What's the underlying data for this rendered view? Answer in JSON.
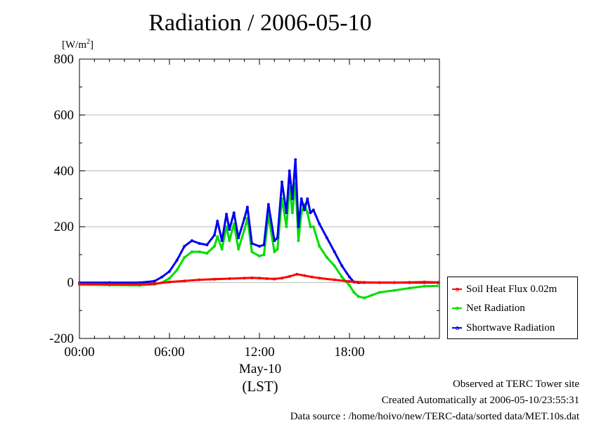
{
  "chart_data": {
    "type": "line",
    "title": "Radiation / 2006-05-10",
    "ylabel": "[W/m2]",
    "ylabel_base": "[W/m",
    "ylabel_sup": "2",
    "ylabel_end": "]",
    "ylim": [
      -200,
      800
    ],
    "xlim": [
      0,
      24
    ],
    "y_ticks": [
      -200,
      0,
      200,
      400,
      600,
      800
    ],
    "y_tick_labels": [
      "-200",
      "0",
      "200",
      "400",
      "600",
      "800"
    ],
    "x_ticks": [
      0,
      6,
      12,
      18
    ],
    "x_tick_labels": [
      "00:00",
      "06:00",
      "12:00",
      "18:00"
    ],
    "x_date_label": "May-10",
    "x_label": "(LST)",
    "grid": true,
    "legend_position": "right",
    "series": [
      {
        "name": "Soil Heat Flux 0.02m",
        "color": "#ff0000",
        "x": [
          0,
          2,
          4,
          5,
          6,
          7,
          8,
          9,
          10,
          11,
          11.5,
          12,
          12.5,
          13,
          13.5,
          14,
          14.5,
          15,
          15.5,
          16,
          17,
          18,
          19,
          20,
          21,
          22,
          23,
          23.9
        ],
        "y": [
          -5,
          -6,
          -6,
          -4,
          2,
          6,
          10,
          12,
          14,
          16,
          17,
          16,
          14,
          13,
          16,
          22,
          30,
          25,
          20,
          16,
          10,
          4,
          1,
          0,
          0,
          1,
          2,
          1
        ]
      },
      {
        "name": "Net Radiation",
        "color": "#00dd00",
        "x": [
          0,
          2,
          4,
          5,
          5.5,
          6,
          6.5,
          7,
          7.5,
          8,
          8.5,
          9,
          9.2,
          9.5,
          9.8,
          10,
          10.3,
          10.6,
          11,
          11.2,
          11.5,
          12,
          12.3,
          12.6,
          13,
          13.2,
          13.5,
          13.8,
          14,
          14.2,
          14.4,
          14.6,
          14.8,
          15,
          15.2,
          15.4,
          15.6,
          16,
          16.5,
          17,
          17.5,
          18,
          18.3,
          18.6,
          19,
          19.5,
          20,
          21,
          22,
          23,
          23.9
        ],
        "y": [
          -8,
          -9,
          -10,
          -6,
          0,
          15,
          45,
          90,
          110,
          110,
          105,
          130,
          165,
          120,
          200,
          150,
          210,
          120,
          190,
          230,
          110,
          95,
          100,
          240,
          110,
          120,
          300,
          200,
          340,
          250,
          355,
          150,
          250,
          280,
          250,
          200,
          200,
          130,
          90,
          60,
          20,
          -10,
          -35,
          -50,
          -55,
          -45,
          -35,
          -28,
          -20,
          -13,
          -12
        ]
      },
      {
        "name": "Shortwave Radiation",
        "color": "#0000ee",
        "x": [
          0,
          2,
          4,
          5,
          5.5,
          6,
          6.5,
          7,
          7.5,
          8,
          8.5,
          9,
          9.2,
          9.5,
          9.8,
          10,
          10.3,
          10.6,
          11,
          11.2,
          11.5,
          12,
          12.3,
          12.6,
          13,
          13.2,
          13.5,
          13.8,
          14,
          14.2,
          14.4,
          14.6,
          14.8,
          15,
          15.2,
          15.4,
          15.6,
          16,
          16.5,
          17,
          17.5,
          18,
          18.3,
          18.6,
          19,
          20,
          21,
          22,
          23,
          23.9
        ],
        "y": [
          0,
          0,
          0,
          5,
          20,
          40,
          80,
          130,
          150,
          140,
          135,
          170,
          220,
          150,
          245,
          190,
          250,
          160,
          230,
          270,
          140,
          130,
          135,
          280,
          150,
          160,
          360,
          250,
          400,
          300,
          440,
          200,
          300,
          260,
          300,
          250,
          260,
          210,
          160,
          110,
          60,
          20,
          2,
          0,
          0,
          0,
          0,
          0,
          0,
          0
        ]
      }
    ]
  },
  "footer": {
    "line1": "Observed at TERC Tower site",
    "line2": "Created Automatically at 2006-05-10/23:55:31",
    "line3": "Data source : /home/hoivo/new/TERC-data/sorted  data/MET.10s.dat"
  }
}
